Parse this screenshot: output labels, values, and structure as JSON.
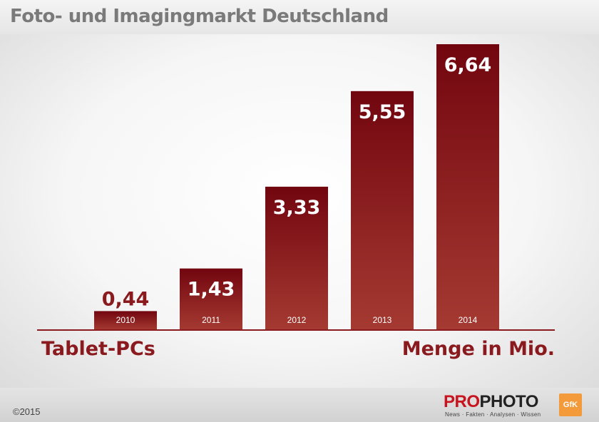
{
  "header": {
    "title": "Foto- und Imagingmarkt Deutschland"
  },
  "chart_data": {
    "type": "bar",
    "categories": [
      "2010",
      "2011",
      "2012",
      "2013",
      "2014"
    ],
    "values": [
      0.44,
      1.43,
      3.33,
      5.55,
      6.64
    ],
    "value_labels": [
      "0,44",
      "1,43",
      "3,33",
      "5,55",
      "6,64"
    ],
    "left_label": "Tablet-PCs",
    "right_label": "Menge in Mio.",
    "ylim": [
      0,
      6.64
    ],
    "grid": false,
    "bar_color": "#7a0f17"
  },
  "footer": {
    "copyright": "©2015",
    "brand_part1": "PRO",
    "brand_part2": "PHOTO",
    "tagline": "News · Fakten · Analysen · Wissen",
    "partner_logo": "GfK"
  }
}
